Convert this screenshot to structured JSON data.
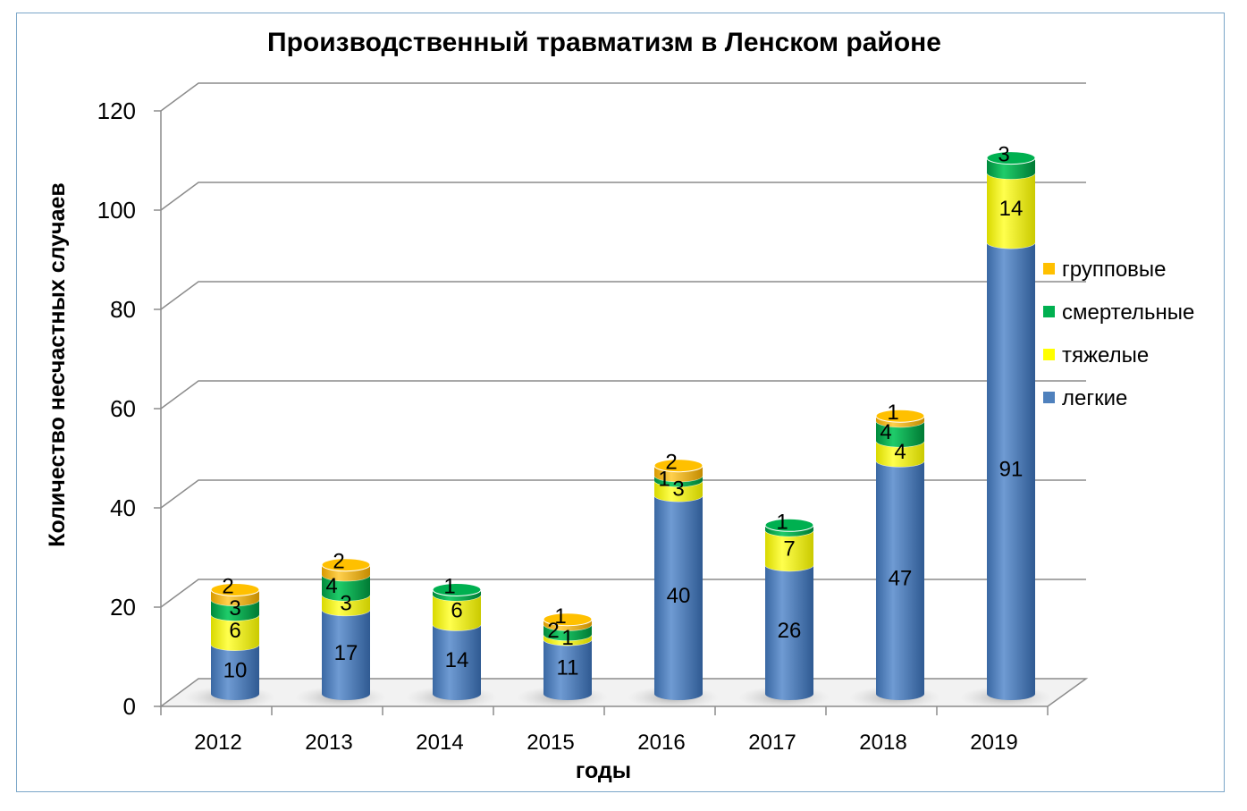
{
  "chart_data": {
    "type": "bar",
    "stacked": true,
    "title": "Производственный травматизм в Ленском районе",
    "xlabel": "годы",
    "ylabel": "Количество несчастных случаев",
    "ylim": [
      0,
      120
    ],
    "yticks": [
      0,
      20,
      40,
      60,
      80,
      100,
      120
    ],
    "grid": true,
    "legend_position": "right",
    "categories": [
      "2012",
      "2013",
      "2014",
      "2015",
      "2016",
      "2017",
      "2018",
      "2019"
    ],
    "series": [
      {
        "name": "легкие",
        "color": "#4f81bd",
        "values": [
          10,
          17,
          14,
          11,
          40,
          26,
          47,
          91
        ]
      },
      {
        "name": "тяжелые",
        "color": "#ffff00",
        "values": [
          6,
          3,
          6,
          1,
          3,
          7,
          4,
          14
        ]
      },
      {
        "name": "смертельные",
        "color": "#00b050",
        "values": [
          3,
          4,
          1,
          2,
          1,
          1,
          4,
          3
        ]
      },
      {
        "name": "групповые",
        "color": "#ffc000",
        "values": [
          2,
          2,
          0,
          1,
          2,
          0,
          1,
          0
        ]
      }
    ]
  }
}
